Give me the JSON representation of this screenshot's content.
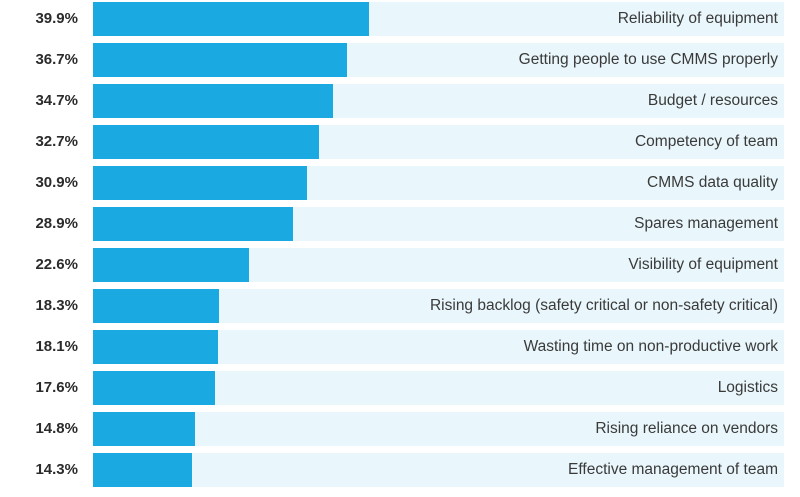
{
  "chart_data": {
    "type": "bar",
    "orientation": "horizontal",
    "categories": [
      "Reliability of equipment",
      "Getting people to use CMMS properly",
      "Budget / resources",
      "Competency of team",
      "CMMS data quality",
      "Spares management",
      "Visibility of equipment",
      "Rising backlog (safety critical or non-safety critical)",
      "Wasting time on non-productive work",
      "Logistics",
      "Rising reliance on vendors",
      "Effective management of team"
    ],
    "values": [
      39.9,
      36.7,
      34.7,
      32.7,
      30.9,
      28.9,
      22.6,
      18.3,
      18.1,
      17.6,
      14.8,
      14.3
    ],
    "value_labels": [
      "39.9%",
      "36.7%",
      "34.7%",
      "32.7%",
      "30.9%",
      "28.9%",
      "22.6%",
      "18.3%",
      "18.1%",
      "17.6%",
      "14.8%",
      "14.3%"
    ],
    "xlim": [
      0,
      100
    ],
    "grid": false,
    "colors": {
      "bar": "#1ba9e1",
      "track": "#e9f6fb"
    }
  }
}
